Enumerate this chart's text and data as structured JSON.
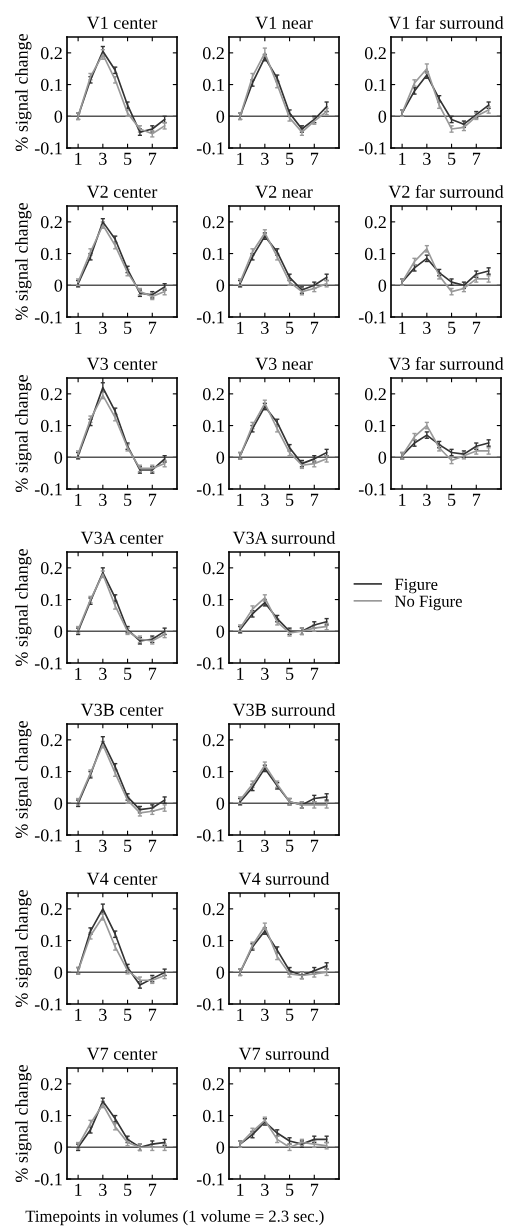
{
  "chart_data": [
    {
      "type": "line",
      "title": "V1 center",
      "ylabel": "% signal change",
      "xlim": [
        0.1,
        9
      ],
      "xticks": [
        1,
        3,
        5,
        7
      ],
      "ylim": [
        -0.1,
        0.25
      ],
      "yticks": [
        -0.1,
        0,
        0.1,
        0.2
      ],
      "x": [
        1,
        2,
        3,
        4,
        5,
        6,
        7,
        8
      ],
      "ref_lines": [
        {
          "axis": "y",
          "value": 0,
          "color": "#555555"
        }
      ],
      "series": [
        {
          "color": "#333333",
          "values": [
            0,
            0.115,
            0.205,
            0.145,
            0.035,
            -0.05,
            -0.04,
            -0.01
          ],
          "errors": [
            0.01,
            0.01,
            0.015,
            0.01,
            0.01,
            0.01,
            0.01,
            0.01
          ]
        },
        {
          "color": "#999999",
          "values": [
            0,
            0.125,
            0.195,
            0.115,
            0.01,
            -0.04,
            -0.055,
            -0.03
          ],
          "errors": [
            0.01,
            0.01,
            0.015,
            0.01,
            0.01,
            0.01,
            0.01,
            0.01
          ]
        }
      ]
    },
    {
      "type": "line",
      "title": "V1 near",
      "xlim": [
        0.1,
        9
      ],
      "xticks": [
        1,
        3,
        5,
        7
      ],
      "ylim": [
        -0.1,
        0.25
      ],
      "yticks": [
        -0.1,
        0,
        0.1,
        0.2
      ],
      "x": [
        1,
        2,
        3,
        4,
        5,
        6,
        7,
        8
      ],
      "ref_lines": [
        {
          "axis": "y",
          "value": 0,
          "color": "#555555"
        }
      ],
      "series": [
        {
          "color": "#333333",
          "values": [
            0,
            0.105,
            0.185,
            0.12,
            0.01,
            -0.04,
            -0.01,
            0.03
          ],
          "errors": [
            0.01,
            0.01,
            0.01,
            0.01,
            0.01,
            0.01,
            0.01,
            0.015
          ]
        },
        {
          "color": "#999999",
          "values": [
            0,
            0.125,
            0.2,
            0.1,
            -0.005,
            -0.05,
            -0.015,
            0.015
          ],
          "errors": [
            0.01,
            0.01,
            0.015,
            0.01,
            0.01,
            0.01,
            0.01,
            0.01
          ]
        }
      ]
    },
    {
      "type": "line",
      "title": "V1 far surround",
      "xlim": [
        0.1,
        9
      ],
      "xticks": [
        1,
        3,
        5,
        7
      ],
      "ylim": [
        -0.1,
        0.25
      ],
      "yticks": [
        -0.1,
        0,
        0.1,
        0.2
      ],
      "x": [
        1,
        2,
        3,
        4,
        5,
        6,
        7,
        8
      ],
      "ref_lines": [
        {
          "axis": "y",
          "value": 0,
          "color": "#555555"
        }
      ],
      "series": [
        {
          "color": "#333333",
          "values": [
            0.01,
            0.08,
            0.13,
            0.055,
            -0.01,
            -0.025,
            0.005,
            0.035
          ],
          "errors": [
            0.01,
            0.01,
            0.01,
            0.01,
            0.01,
            0.01,
            0.01,
            0.01
          ]
        },
        {
          "color": "#999999",
          "values": [
            0.01,
            0.105,
            0.15,
            0.035,
            -0.04,
            -0.035,
            0,
            0.02
          ],
          "errors": [
            0.01,
            0.01,
            0.015,
            0.01,
            0.01,
            0.01,
            0.01,
            0.01
          ]
        }
      ]
    },
    {
      "type": "line",
      "title": "V2 center",
      "ylabel": "% signal change",
      "xlim": [
        0.1,
        9
      ],
      "xticks": [
        1,
        3,
        5,
        7
      ],
      "ylim": [
        -0.1,
        0.25
      ],
      "yticks": [
        -0.1,
        0,
        0.1,
        0.2
      ],
      "x": [
        1,
        2,
        3,
        4,
        5,
        6,
        7,
        8
      ],
      "ref_lines": [
        {
          "axis": "y",
          "value": 0,
          "color": "#555555"
        }
      ],
      "series": [
        {
          "color": "#333333",
          "values": [
            0.005,
            0.09,
            0.2,
            0.145,
            0.05,
            -0.025,
            -0.03,
            -0.005
          ],
          "errors": [
            0.01,
            0.01,
            0.01,
            0.01,
            0.01,
            0.01,
            0.01,
            0.01
          ]
        },
        {
          "color": "#999999",
          "values": [
            0.01,
            0.105,
            0.19,
            0.125,
            0.04,
            -0.02,
            -0.035,
            -0.02
          ],
          "errors": [
            0.01,
            0.01,
            0.01,
            0.01,
            0.01,
            0.01,
            0.01,
            0.01
          ]
        }
      ]
    },
    {
      "type": "line",
      "title": "V2 near",
      "xlim": [
        0.1,
        9
      ],
      "xticks": [
        1,
        3,
        5,
        7
      ],
      "ylim": [
        -0.1,
        0.25
      ],
      "yticks": [
        -0.1,
        0,
        0.1,
        0.2
      ],
      "x": [
        1,
        2,
        3,
        4,
        5,
        6,
        7,
        8
      ],
      "ref_lines": [
        {
          "axis": "y",
          "value": 0,
          "color": "#555555"
        }
      ],
      "series": [
        {
          "color": "#333333",
          "values": [
            0.005,
            0.09,
            0.155,
            0.105,
            0.025,
            -0.015,
            0,
            0.025
          ],
          "errors": [
            0.01,
            0.01,
            0.01,
            0.01,
            0.01,
            0.01,
            0.01,
            0.01
          ]
        },
        {
          "color": "#999999",
          "values": [
            0.01,
            0.105,
            0.165,
            0.09,
            0.01,
            -0.02,
            -0.01,
            0.005
          ],
          "errors": [
            0.01,
            0.01,
            0.01,
            0.01,
            0.01,
            0.01,
            0.01,
            0.01
          ]
        }
      ]
    },
    {
      "type": "line",
      "title": "V2 far surround",
      "xlim": [
        0.1,
        9
      ],
      "xticks": [
        1,
        3,
        5,
        7
      ],
      "ylim": [
        -0.1,
        0.25
      ],
      "yticks": [
        -0.1,
        0,
        0.1,
        0.2
      ],
      "x": [
        1,
        2,
        3,
        4,
        5,
        6,
        7,
        8
      ],
      "ref_lines": [
        {
          "axis": "y",
          "value": 0,
          "color": "#555555"
        }
      ],
      "series": [
        {
          "color": "#333333",
          "values": [
            0.01,
            0.055,
            0.085,
            0.04,
            0.01,
            0,
            0.035,
            0.045
          ],
          "errors": [
            0.01,
            0.01,
            0.01,
            0.01,
            0.01,
            0.01,
            0.01,
            0.01
          ]
        },
        {
          "color": "#999999",
          "values": [
            0.01,
            0.075,
            0.115,
            0.03,
            -0.02,
            -0.01,
            0.02,
            0.02
          ],
          "errors": [
            0.01,
            0.01,
            0.01,
            0.01,
            0.01,
            0.01,
            0.01,
            0.01
          ]
        }
      ]
    },
    {
      "type": "line",
      "title": "V3 center",
      "ylabel": "% signal change",
      "xlim": [
        0.1,
        9
      ],
      "xticks": [
        1,
        3,
        5,
        7
      ],
      "ylim": [
        -0.1,
        0.25
      ],
      "yticks": [
        -0.1,
        0,
        0.1,
        0.2
      ],
      "x": [
        1,
        2,
        3,
        4,
        5,
        6,
        7,
        8
      ],
      "ref_lines": [
        {
          "axis": "y",
          "value": 0,
          "color": "#555555"
        }
      ],
      "series": [
        {
          "color": "#333333",
          "values": [
            0.005,
            0.11,
            0.22,
            0.145,
            0.035,
            -0.04,
            -0.04,
            -0.005
          ],
          "errors": [
            0.01,
            0.01,
            0.015,
            0.01,
            0.01,
            0.01,
            0.01,
            0.01
          ]
        },
        {
          "color": "#999999",
          "values": [
            0.01,
            0.12,
            0.195,
            0.125,
            0.03,
            -0.035,
            -0.035,
            -0.02
          ],
          "errors": [
            0.01,
            0.01,
            0.01,
            0.01,
            0.01,
            0.01,
            0.01,
            0.01
          ]
        }
      ]
    },
    {
      "type": "line",
      "title": "V3 near",
      "xlim": [
        0.1,
        9
      ],
      "xticks": [
        1,
        3,
        5,
        7
      ],
      "ylim": [
        -0.1,
        0.25
      ],
      "yticks": [
        -0.1,
        0,
        0.1,
        0.2
      ],
      "x": [
        1,
        2,
        3,
        4,
        5,
        6,
        7,
        8
      ],
      "ref_lines": [
        {
          "axis": "y",
          "value": 0,
          "color": "#555555"
        }
      ],
      "series": [
        {
          "color": "#333333",
          "values": [
            0.005,
            0.09,
            0.16,
            0.11,
            0.03,
            -0.02,
            -0.005,
            0.015
          ],
          "errors": [
            0.01,
            0.01,
            0.01,
            0.01,
            0.01,
            0.01,
            0.01,
            0.01
          ]
        },
        {
          "color": "#999999",
          "values": [
            0.005,
            0.1,
            0.17,
            0.09,
            0.015,
            -0.025,
            -0.02,
            -0.005
          ],
          "errors": [
            0.01,
            0.01,
            0.01,
            0.01,
            0.01,
            0.01,
            0.01,
            0.01
          ]
        }
      ]
    },
    {
      "type": "line",
      "title": "V3 far surround",
      "xlim": [
        0.1,
        9
      ],
      "xticks": [
        1,
        3,
        5,
        7
      ],
      "ylim": [
        -0.1,
        0.25
      ],
      "yticks": [
        -0.1,
        0,
        0.1,
        0.2
      ],
      "x": [
        1,
        2,
        3,
        4,
        5,
        6,
        7,
        8
      ],
      "ref_lines": [
        {
          "axis": "y",
          "value": 0,
          "color": "#555555"
        }
      ],
      "series": [
        {
          "color": "#333333",
          "values": [
            0.005,
            0.045,
            0.07,
            0.04,
            0.015,
            0.01,
            0.035,
            0.045
          ],
          "errors": [
            0.01,
            0.01,
            0.01,
            0.01,
            0.01,
            0.01,
            0.01,
            0.01
          ]
        },
        {
          "color": "#999999",
          "values": [
            0.005,
            0.065,
            0.1,
            0.03,
            -0.01,
            0.005,
            0.02,
            0.02
          ],
          "errors": [
            0.01,
            0.01,
            0.01,
            0.01,
            0.01,
            0.01,
            0.01,
            0.01
          ]
        }
      ]
    },
    {
      "type": "line",
      "title": "V3A center",
      "ylabel": "% signal change",
      "xlim": [
        0.1,
        9
      ],
      "xticks": [
        1,
        3,
        5,
        7
      ],
      "ylim": [
        -0.1,
        0.25
      ],
      "yticks": [
        -0.1,
        0,
        0.1,
        0.2
      ],
      "x": [
        1,
        2,
        3,
        4,
        5,
        6,
        7,
        8
      ],
      "ref_lines": [
        {
          "axis": "y",
          "value": 0,
          "color": "#555555"
        }
      ],
      "series": [
        {
          "color": "#333333",
          "values": [
            0,
            0.095,
            0.185,
            0.105,
            0.005,
            -0.03,
            -0.025,
            0
          ],
          "errors": [
            0.01,
            0.01,
            0.015,
            0.01,
            0.01,
            0.01,
            0.01,
            0.01
          ]
        },
        {
          "color": "#999999",
          "values": [
            0.005,
            0.1,
            0.18,
            0.08,
            0,
            -0.025,
            -0.03,
            -0.01
          ],
          "errors": [
            0.01,
            0.01,
            0.01,
            0.01,
            0.01,
            0.01,
            0.01,
            0.01
          ]
        }
      ]
    },
    {
      "type": "line",
      "title": "V3A surround",
      "xlim": [
        0.1,
        9
      ],
      "xticks": [
        1,
        3,
        5,
        7
      ],
      "ylim": [
        -0.1,
        0.25
      ],
      "yticks": [
        -0.1,
        0,
        0.1,
        0.2
      ],
      "x": [
        1,
        2,
        3,
        4,
        5,
        6,
        7,
        8
      ],
      "legend": "right",
      "ref_lines": [
        {
          "axis": "y",
          "value": 0,
          "color": "#555555"
        }
      ],
      "series": [
        {
          "name": "Figure",
          "color": "#333333",
          "values": [
            0.005,
            0.055,
            0.09,
            0.04,
            0,
            0,
            0.02,
            0.03
          ],
          "errors": [
            0.01,
            0.01,
            0.01,
            0.01,
            0.01,
            0.01,
            0.01,
            0.01
          ]
        },
        {
          "name": "No Figure",
          "color": "#999999",
          "values": [
            0.01,
            0.07,
            0.105,
            0.03,
            -0.005,
            0,
            0.01,
            0.015
          ],
          "errors": [
            0.01,
            0.01,
            0.01,
            0.01,
            0.01,
            0.01,
            0.01,
            0.01
          ]
        }
      ]
    },
    {
      "type": "line",
      "title": "V3B center",
      "ylabel": "% signal change",
      "xlim": [
        0.1,
        9
      ],
      "xticks": [
        1,
        3,
        5,
        7
      ],
      "ylim": [
        -0.1,
        0.25
      ],
      "yticks": [
        -0.1,
        0,
        0.1,
        0.2
      ],
      "x": [
        1,
        2,
        3,
        4,
        5,
        6,
        7,
        8
      ],
      "ref_lines": [
        {
          "axis": "y",
          "value": 0,
          "color": "#555555"
        }
      ],
      "series": [
        {
          "color": "#333333",
          "values": [
            0,
            0.09,
            0.195,
            0.115,
            0.02,
            -0.02,
            -0.015,
            0.01
          ],
          "errors": [
            0.01,
            0.01,
            0.015,
            0.01,
            0.01,
            0.01,
            0.01,
            0.01
          ]
        },
        {
          "color": "#999999",
          "values": [
            0.005,
            0.095,
            0.185,
            0.095,
            0.01,
            -0.03,
            -0.025,
            -0.015
          ],
          "errors": [
            0.01,
            0.01,
            0.01,
            0.01,
            0.01,
            0.01,
            0.01,
            0.01
          ]
        }
      ]
    },
    {
      "type": "line",
      "title": "V3B surround",
      "xlim": [
        0.1,
        9
      ],
      "xticks": [
        1,
        3,
        5,
        7
      ],
      "ylim": [
        -0.1,
        0.25
      ],
      "yticks": [
        -0.1,
        0,
        0.1,
        0.2
      ],
      "x": [
        1,
        2,
        3,
        4,
        5,
        6,
        7,
        8
      ],
      "ref_lines": [
        {
          "axis": "y",
          "value": 0,
          "color": "#555555"
        }
      ],
      "series": [
        {
          "color": "#333333",
          "values": [
            0.005,
            0.05,
            0.11,
            0.055,
            0.005,
            -0.005,
            0.015,
            0.02
          ],
          "errors": [
            0.01,
            0.01,
            0.01,
            0.01,
            0.01,
            0.01,
            0.01,
            0.01
          ]
        },
        {
          "color": "#999999",
          "values": [
            0.01,
            0.06,
            0.12,
            0.06,
            0.005,
            -0.005,
            -0.005,
            -0.005
          ],
          "errors": [
            0.01,
            0.01,
            0.01,
            0.01,
            0.01,
            0.01,
            0.01,
            0.01
          ]
        }
      ]
    },
    {
      "type": "line",
      "title": "V4 center",
      "ylabel": "% signal change",
      "xlim": [
        0.1,
        9
      ],
      "xticks": [
        1,
        3,
        5,
        7
      ],
      "ylim": [
        -0.1,
        0.25
      ],
      "yticks": [
        -0.1,
        0,
        0.1,
        0.2
      ],
      "x": [
        1,
        2,
        3,
        4,
        5,
        6,
        7,
        8
      ],
      "ref_lines": [
        {
          "axis": "y",
          "value": 0,
          "color": "#555555"
        }
      ],
      "series": [
        {
          "color": "#333333",
          "values": [
            0.005,
            0.13,
            0.2,
            0.12,
            0.015,
            -0.04,
            -0.02,
            0
          ],
          "errors": [
            0.01,
            0.01,
            0.015,
            0.01,
            0.01,
            0.01,
            0.01,
            0.01
          ]
        },
        {
          "color": "#999999",
          "values": [
            0.005,
            0.115,
            0.175,
            0.08,
            0.005,
            -0.025,
            -0.025,
            -0.01
          ],
          "errors": [
            0.01,
            0.01,
            0.01,
            0.01,
            0.01,
            0.01,
            0.01,
            0.01
          ]
        }
      ]
    },
    {
      "type": "line",
      "title": "V4 surround",
      "xlim": [
        0.1,
        9
      ],
      "xticks": [
        1,
        3,
        5,
        7
      ],
      "ylim": [
        -0.1,
        0.25
      ],
      "yticks": [
        -0.1,
        0,
        0.1,
        0.2
      ],
      "x": [
        1,
        2,
        3,
        4,
        5,
        6,
        7,
        8
      ],
      "ref_lines": [
        {
          "axis": "y",
          "value": 0,
          "color": "#555555"
        }
      ],
      "series": [
        {
          "color": "#333333",
          "values": [
            0,
            0.08,
            0.13,
            0.07,
            0.005,
            -0.01,
            0.005,
            0.02
          ],
          "errors": [
            0.01,
            0.01,
            0.01,
            0.01,
            0.01,
            0.01,
            0.01,
            0.01
          ]
        },
        {
          "color": "#999999",
          "values": [
            0,
            0.085,
            0.145,
            0.05,
            -0.005,
            -0.01,
            -0.005,
            0
          ],
          "errors": [
            0.01,
            0.01,
            0.01,
            0.01,
            0.01,
            0.01,
            0.01,
            0.01
          ]
        }
      ]
    },
    {
      "type": "line",
      "title": "V7 center",
      "ylabel": "% signal change",
      "xlabel": "Timepoints in volumes (1 volume = 2.3 sec.)",
      "xlim": [
        0.1,
        9
      ],
      "xticks": [
        1,
        3,
        5,
        7
      ],
      "ylim": [
        -0.1,
        0.25
      ],
      "yticks": [
        -0.1,
        0,
        0.1,
        0.2
      ],
      "x": [
        1,
        2,
        3,
        4,
        5,
        6,
        7,
        8
      ],
      "ref_lines": [
        {
          "axis": "y",
          "value": 0,
          "color": "#555555"
        }
      ],
      "series": [
        {
          "color": "#333333",
          "values": [
            0,
            0.055,
            0.145,
            0.09,
            0.025,
            0,
            0.01,
            0.015
          ],
          "errors": [
            0.01,
            0.01,
            0.01,
            0.01,
            0.01,
            0.01,
            0.01,
            0.01
          ]
        },
        {
          "color": "#999999",
          "values": [
            0.005,
            0.075,
            0.135,
            0.065,
            0.015,
            0,
            0,
            0
          ],
          "errors": [
            0.01,
            0.01,
            0.01,
            0.01,
            0.01,
            0.01,
            0.01,
            0.01
          ]
        }
      ]
    },
    {
      "type": "line",
      "title": "V7 surround",
      "xlim": [
        0.1,
        9
      ],
      "xticks": [
        1,
        3,
        5,
        7
      ],
      "ylim": [
        -0.1,
        0.25
      ],
      "yticks": [
        -0.1,
        0,
        0.1,
        0.2
      ],
      "x": [
        1,
        2,
        3,
        4,
        5,
        6,
        7,
        8
      ],
      "ref_lines": [
        {
          "axis": "y",
          "value": 0,
          "color": "#555555"
        }
      ],
      "series": [
        {
          "color": "#333333",
          "values": [
            0.01,
            0.04,
            0.08,
            0.045,
            0.02,
            0.01,
            0.025,
            0.025
          ],
          "errors": [
            0.01,
            0.01,
            0.01,
            0.01,
            0.01,
            0.01,
            0.01,
            0.01
          ]
        },
        {
          "color": "#999999",
          "values": [
            0.01,
            0.05,
            0.085,
            0.025,
            0,
            0.015,
            0.01,
            0.005
          ],
          "errors": [
            0.01,
            0.01,
            0.01,
            0.01,
            0.01,
            0.01,
            0.01,
            0.01
          ]
        }
      ]
    }
  ]
}
